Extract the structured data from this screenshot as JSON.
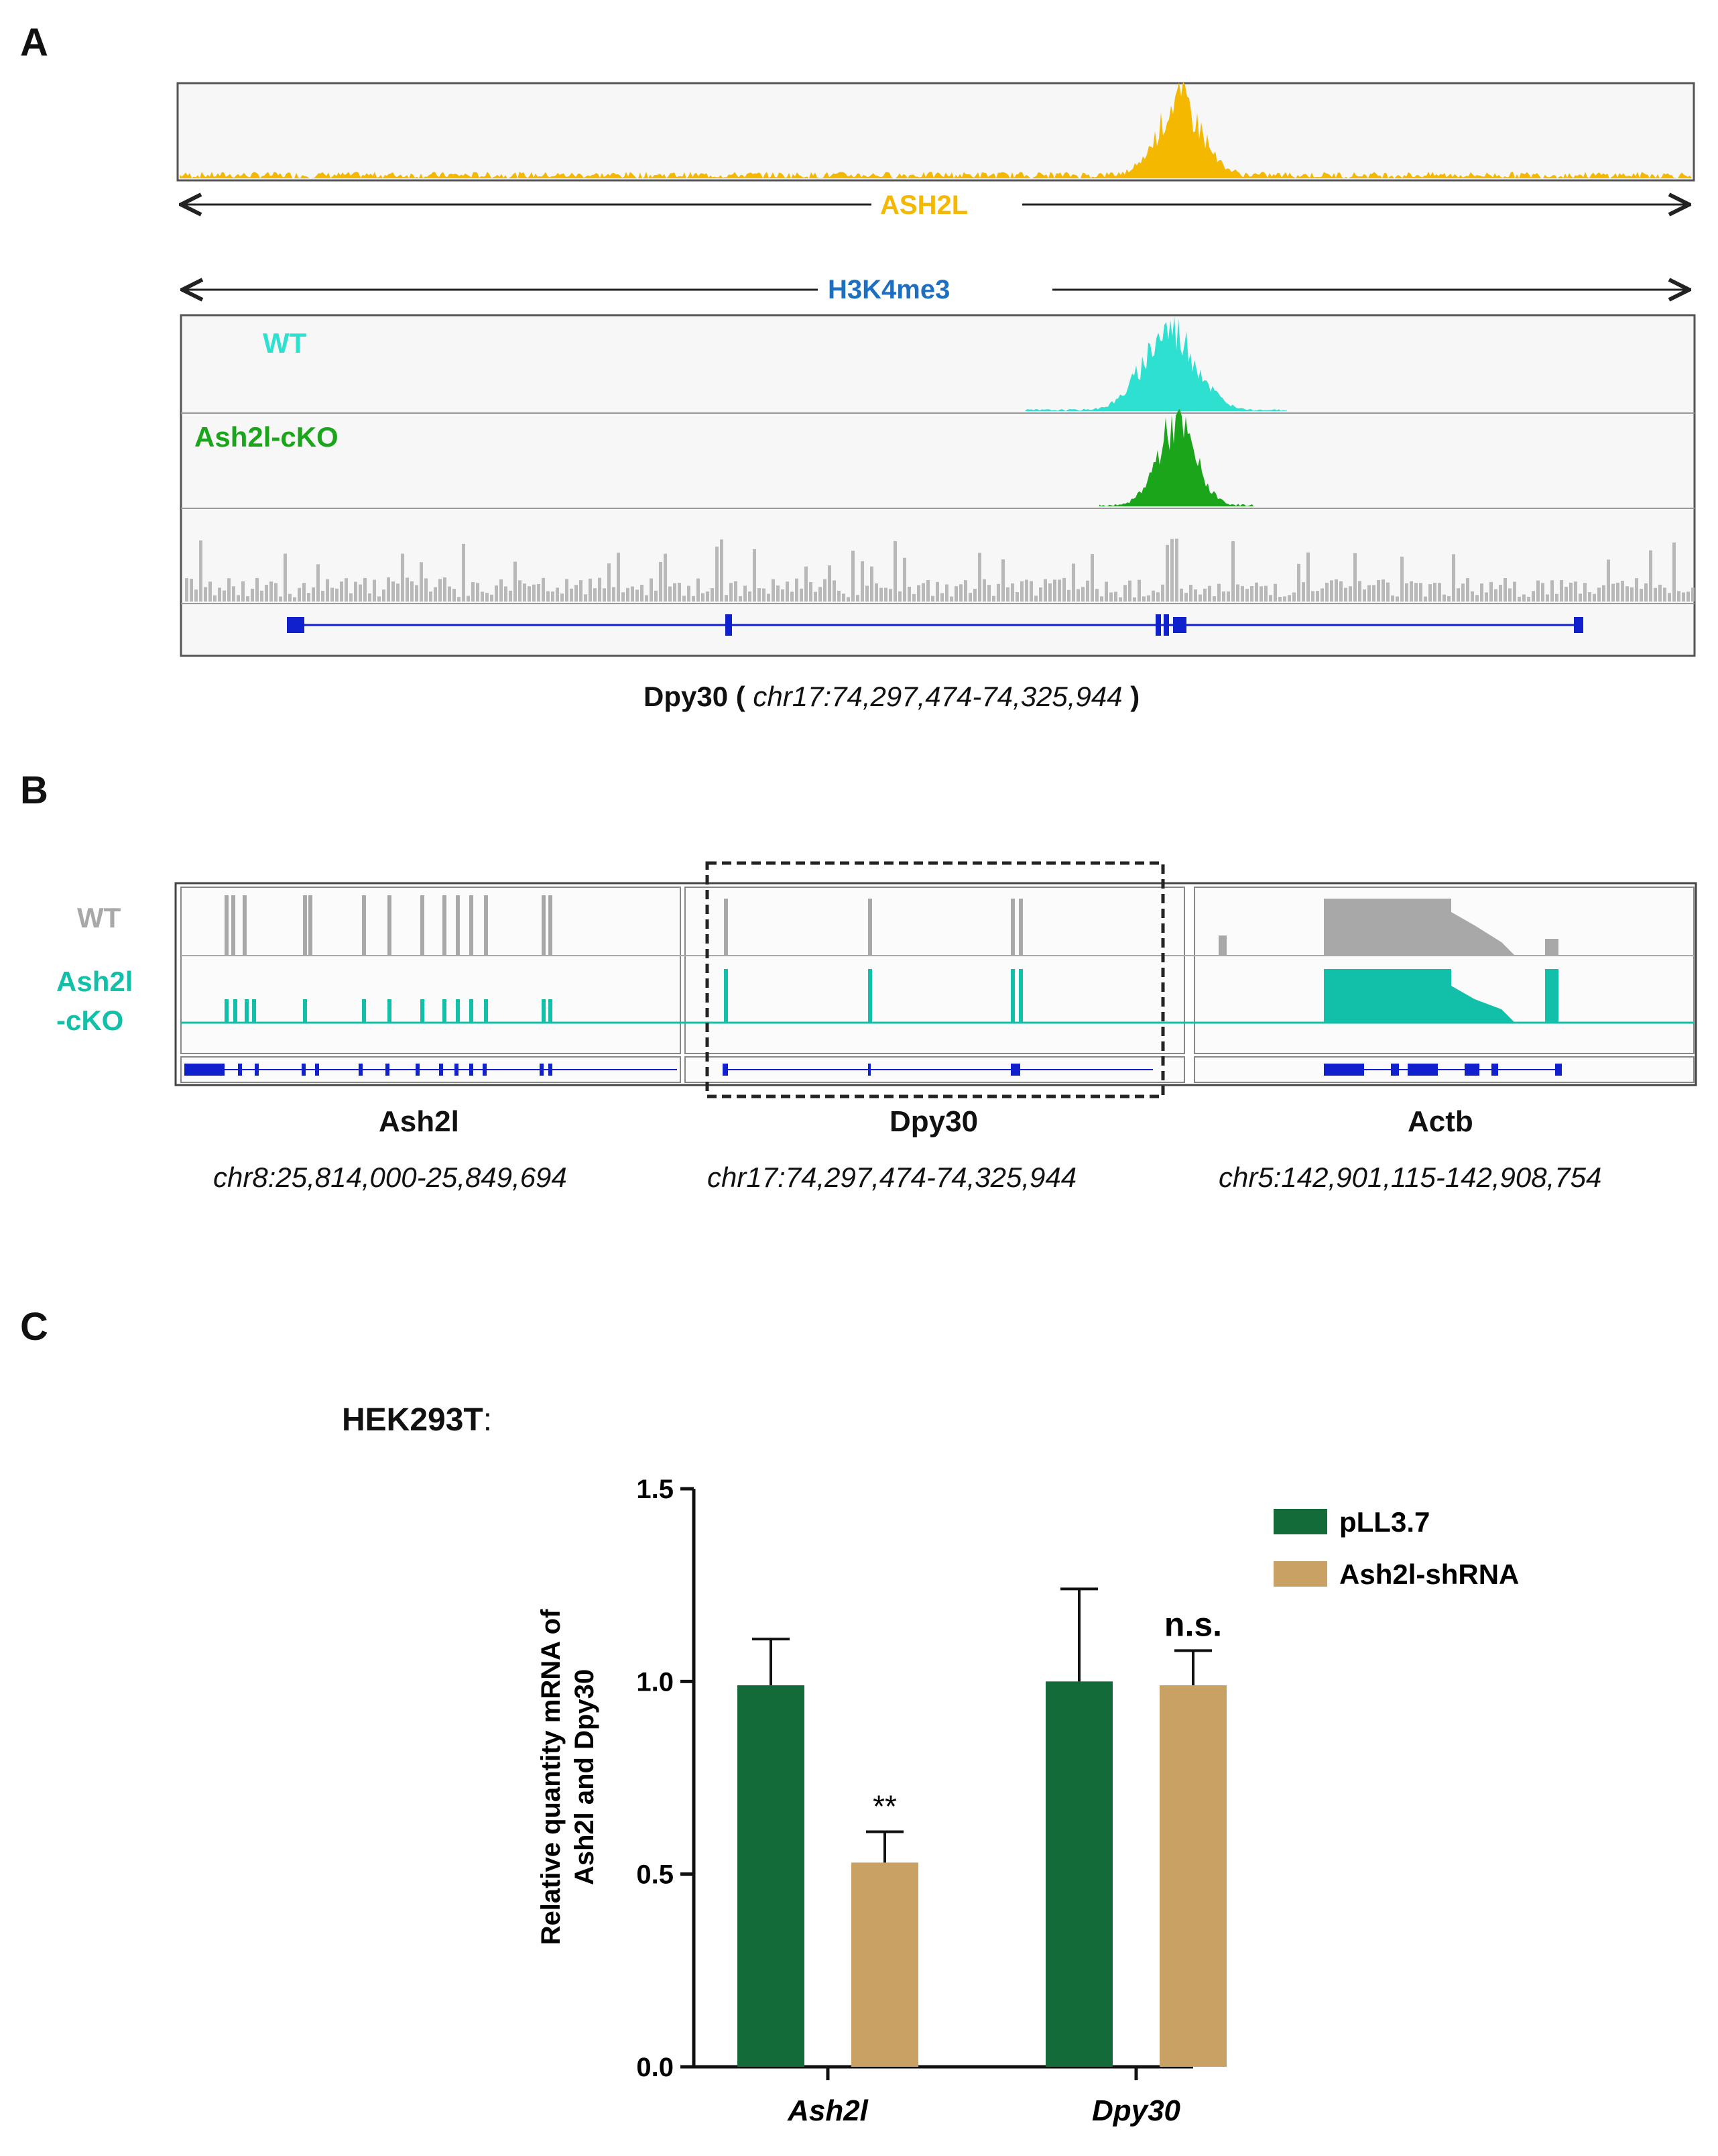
{
  "panels": {
    "a": "A",
    "b": "B",
    "c": "C"
  },
  "panel_a": {
    "ash2l_label": "ASH2L",
    "h3k4me3_label": "H3K4me3",
    "wt_label": "WT",
    "cko_label": "Ash2l-cKO",
    "gene": "Dpy30",
    "open_paren": "(",
    "coords": "chr17:74,297,474-74,325,944",
    "close_paren": ")",
    "colors": {
      "ash2l": "#f5b800",
      "wt": "#2ee0d0",
      "cko": "#1aa51a",
      "input": "#b8b8b8",
      "gene": "#1020cc",
      "h3k4me3_text": "#1e6fc0"
    }
  },
  "panel_b": {
    "wt_label": "WT",
    "cko_label_line1": "Ash2l",
    "cko_label_line2": "-cKO",
    "loci": [
      {
        "gene": "Ash2l",
        "coords": "chr8:25,814,000-25,849,694"
      },
      {
        "gene": "Dpy30",
        "coords": "chr17:74,297,474-74,325,944"
      },
      {
        "gene": "Actb",
        "coords": "chr5:142,901,115-142,908,754"
      }
    ],
    "colors": {
      "wt": "#a8a8a8",
      "cko": "#12bfa9",
      "gene": "#1020cc"
    }
  },
  "panel_c": {
    "cell_line": "HEK293T",
    "cell_line_suffix": ":",
    "chart_data": {
      "type": "bar",
      "categories": [
        "Ash2l",
        "Dpy30"
      ],
      "series": [
        {
          "name": "pLL3.7",
          "color": "#136b3a",
          "values": [
            0.99,
            1.0
          ],
          "errors": [
            0.12,
            0.24
          ]
        },
        {
          "name": "Ash2l-shRNA",
          "color": "#c9a164",
          "values": [
            0.53,
            0.99
          ],
          "errors": [
            0.08,
            0.09
          ]
        }
      ],
      "annotations": [
        "**",
        "n.s."
      ],
      "ylabel_line1": "Relative quantity mRNA of",
      "ylabel_line2": "Ash2l and Dpy30",
      "ylim": [
        0,
        1.5
      ],
      "yticks": [
        "0.0",
        "0.5",
        "1.0",
        "1.5"
      ]
    }
  }
}
